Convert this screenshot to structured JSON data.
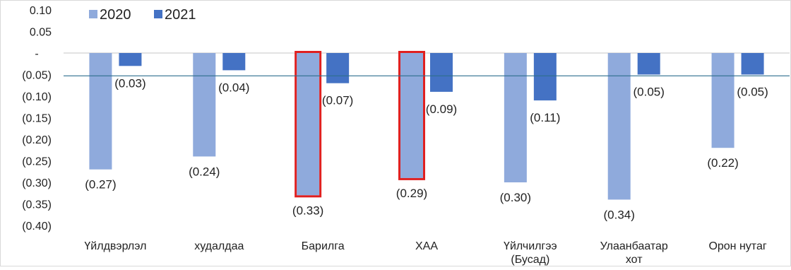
{
  "chart_data": {
    "type": "bar",
    "categories": [
      "Үйлдвэрлэл",
      "худалдаа",
      "Барилга",
      "ХАА",
      "Үйлчилгээ (Бусад)",
      "Улаанбаатар хот",
      "Орон нутаг"
    ],
    "category_lines": [
      [
        "Үйлдвэрлэл"
      ],
      [
        "худалдаа"
      ],
      [
        "Барилга"
      ],
      [
        "ХАА"
      ],
      [
        "Үйлчилгээ",
        "(Бусад)"
      ],
      [
        "Улаанбаатар",
        "хот"
      ],
      [
        "Орон нутаг"
      ]
    ],
    "series": [
      {
        "name": "2020",
        "values": [
          -0.27,
          -0.24,
          -0.33,
          -0.29,
          -0.3,
          -0.34,
          -0.22
        ],
        "labels": [
          "(0.27)",
          "(0.24)",
          "(0.33)",
          "(0.29)",
          "(0.30)",
          "(0.34)",
          "(0.22)"
        ],
        "color": "#8faadc"
      },
      {
        "name": "2021",
        "values": [
          -0.03,
          -0.04,
          -0.07,
          -0.09,
          -0.11,
          -0.05,
          -0.05
        ],
        "labels": [
          "(0.03)",
          "(0.04)",
          "(0.07)",
          "(0.09)",
          "(0.11)",
          "(0.05)",
          "(0.05)"
        ],
        "color": "#4472c4"
      }
    ],
    "ylim": [
      -0.4,
      0.1
    ],
    "y_ticks": [
      {
        "value": 0.1,
        "label": "0.10"
      },
      {
        "value": 0.05,
        "label": "0.05"
      },
      {
        "value": 0.0,
        "label": "-"
      },
      {
        "value": -0.05,
        "label": "(0.05)"
      },
      {
        "value": -0.1,
        "label": "(0.10)"
      },
      {
        "value": -0.15,
        "label": "(0.15)"
      },
      {
        "value": -0.2,
        "label": "(0.20)"
      },
      {
        "value": -0.25,
        "label": "(0.25)"
      },
      {
        "value": -0.3,
        "label": "(0.30)"
      },
      {
        "value": -0.35,
        "label": "(0.35)"
      },
      {
        "value": -0.4,
        "label": "(0.40)"
      }
    ],
    "reference_line": {
      "value": -0.053,
      "color": "#2e6f8e"
    },
    "highlighted": [
      {
        "series": "2020",
        "category": "Барилга"
      },
      {
        "series": "2020",
        "category": "ХАА"
      }
    ],
    "highlight_color": "#e02020",
    "legend_position": "top-left",
    "grid": false,
    "xlabel": "",
    "ylabel": ""
  }
}
